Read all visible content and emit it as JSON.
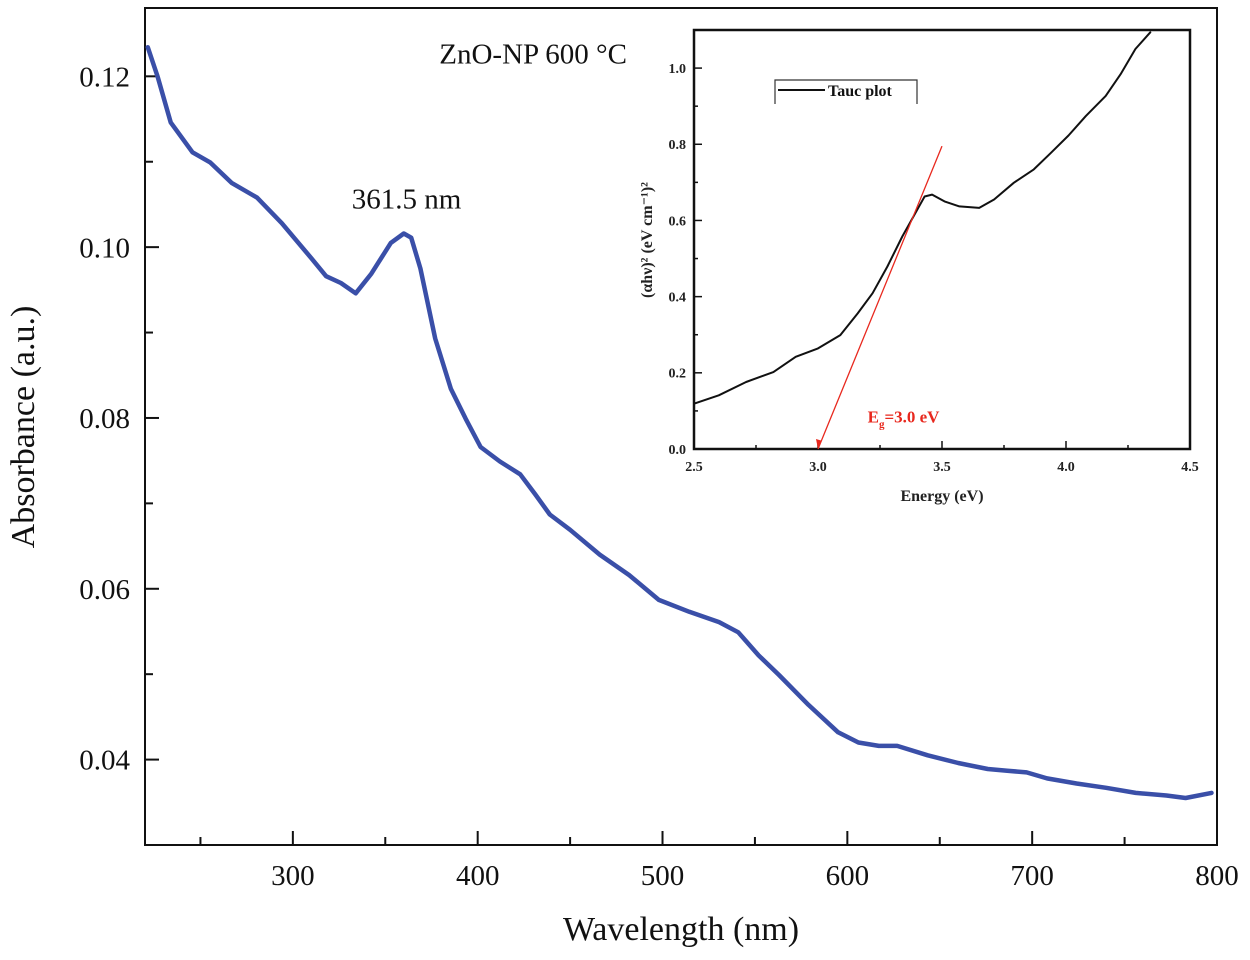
{
  "chart_data": [
    {
      "type": "line",
      "title": "",
      "xlabel": "Wavelength (nm)",
      "ylabel": "Absorbance (a.u.)",
      "xlim": [
        220,
        800
      ],
      "ylim": [
        0.03,
        0.128
      ],
      "xticks": [
        300,
        400,
        500,
        600,
        700,
        800
      ],
      "xtick_labels": [
        "300",
        "400",
        "500",
        "600",
        "700",
        "800"
      ],
      "yticks": [
        0.04,
        0.06,
        0.08,
        0.1,
        0.12
      ],
      "ytick_labels": [
        "0.04",
        "0.06",
        "0.08",
        "0.10",
        "0.12"
      ],
      "grid": false,
      "series": [
        {
          "color": "#3a4fa8",
          "x": [
            221.5,
            226.9,
            233.9,
            245.7,
            255.4,
            267,
            280.6,
            294,
            310,
            318,
            326,
            334,
            342.5,
            353,
            360,
            364,
            369,
            377,
            385.5,
            393.5,
            401.6,
            412,
            423,
            431,
            439,
            450,
            466,
            482,
            498,
            514.5,
            530.6,
            541,
            552,
            563,
            579,
            595,
            606,
            617,
            627,
            643.5,
            660,
            676,
            686.5,
            697,
            708,
            724,
            740,
            756,
            772.6,
            783,
            797
          ],
          "y": [
            0.1234,
            0.1199,
            0.1146,
            0.1111,
            0.1099,
            0.1075,
            0.1058,
            0.1028,
            0.0987,
            0.0966,
            0.0958,
            0.0946,
            0.0969,
            0.1005,
            0.1016,
            0.1011,
            0.0975,
            0.0893,
            0.0834,
            0.0799,
            0.0766,
            0.0749,
            0.0734,
            0.0711,
            0.0687,
            0.0669,
            0.064,
            0.0616,
            0.0587,
            0.0573,
            0.0561,
            0.0549,
            0.0522,
            0.0499,
            0.0464,
            0.0432,
            0.042,
            0.0416,
            0.0416,
            0.0405,
            0.0396,
            0.0389,
            0.0387,
            0.0385,
            0.0378,
            0.0372,
            0.0367,
            0.0361,
            0.0358,
            0.0355,
            0.0361
          ]
        }
      ],
      "annotations": [
        {
          "text": "ZnO-NP 600 °C",
          "x": 430,
          "y": 0.1215
        },
        {
          "text": "361.5 nm",
          "x": 361.5,
          "y": 0.1045
        }
      ]
    },
    {
      "type": "line",
      "title": "",
      "xlabel": "Energy (eV)",
      "ylabel": "(αhν)² (eV cm⁻¹)²",
      "xlim": [
        2.5,
        4.5
      ],
      "ylim": [
        0.0,
        1.1
      ],
      "xticks": [
        2.5,
        3.0,
        3.5,
        4.0,
        4.5
      ],
      "xtick_labels": [
        "2.5",
        "3.0",
        "3.5",
        "4.0",
        "4.5"
      ],
      "yticks": [
        0.0,
        0.2,
        0.4,
        0.6,
        0.8,
        1.0
      ],
      "ytick_labels": [
        "0.0",
        "0.2",
        "0.4",
        "0.6",
        "0.8",
        "1.0"
      ],
      "grid": false,
      "legend": {
        "placement": "top-left",
        "entries": [
          "Tauc plot"
        ]
      },
      "series": [
        {
          "name": "Tauc plot",
          "color": "#111111",
          "x": [
            2.5,
            2.6,
            2.71,
            2.82,
            2.91,
            3.0,
            3.09,
            3.16,
            3.22,
            3.28,
            3.34,
            3.4,
            3.43,
            3.46,
            3.51,
            3.57,
            3.65,
            3.71,
            3.79,
            3.87,
            3.94,
            4.01,
            4.08,
            4.16,
            4.22,
            4.28,
            4.34
          ],
          "y": [
            0.119,
            0.141,
            0.176,
            0.202,
            0.242,
            0.264,
            0.299,
            0.356,
            0.409,
            0.479,
            0.558,
            0.628,
            0.663,
            0.668,
            0.65,
            0.637,
            0.633,
            0.655,
            0.699,
            0.734,
            0.778,
            0.823,
            0.874,
            0.927,
            0.984,
            1.05,
            1.094
          ]
        }
      ],
      "fit_line": {
        "color": "#e8281e",
        "x": [
          3.5,
          3.0
        ],
        "y": [
          0.795,
          0.0
        ]
      },
      "annotations": [
        {
          "main": "E",
          "sub": "g",
          "rest": "=3.0 eV",
          "color": "#e8281e",
          "x": 3.2,
          "y": 0.07
        }
      ]
    }
  ]
}
